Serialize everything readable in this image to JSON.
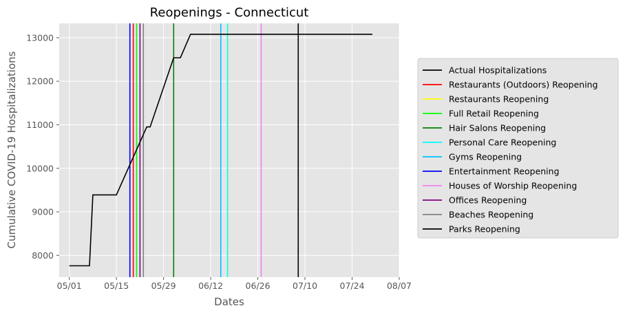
{
  "chart_data": {
    "type": "line",
    "title": "Reopenings - Connecticut",
    "xlabel": "Dates",
    "ylabel": "Cumulative COVID-19 Hospitalizations",
    "x_axis": {
      "type": "date",
      "range": [
        "2020-04-28",
        "2020-08-07"
      ],
      "ticks": [
        {
          "date": "2020-05-01",
          "label": "05/01"
        },
        {
          "date": "2020-05-15",
          "label": "05/15"
        },
        {
          "date": "2020-05-29",
          "label": "05/29"
        },
        {
          "date": "2020-06-12",
          "label": "06/12"
        },
        {
          "date": "2020-06-26",
          "label": "06/26"
        },
        {
          "date": "2020-07-10",
          "label": "07/10"
        },
        {
          "date": "2020-07-24",
          "label": "07/24"
        },
        {
          "date": "2020-08-07",
          "label": "08/07"
        }
      ]
    },
    "y_axis": {
      "range": [
        7500,
        13330
      ],
      "ticks": [
        {
          "value": 8000,
          "label": "8000"
        },
        {
          "value": 9000,
          "label": "9000"
        },
        {
          "value": 10000,
          "label": "10000"
        },
        {
          "value": 11000,
          "label": "11000"
        },
        {
          "value": 12000,
          "label": "12000"
        },
        {
          "value": 13000,
          "label": "13000"
        }
      ]
    },
    "grid": true,
    "legend_position": "right",
    "series": [
      {
        "name": "Actual Hospitalizations",
        "color": "#000000",
        "points": [
          {
            "x": "2020-05-01",
            "y": 7760
          },
          {
            "x": "2020-05-07",
            "y": 7760
          },
          {
            "x": "2020-05-08",
            "y": 9390
          },
          {
            "x": "2020-05-15",
            "y": 9390
          },
          {
            "x": "2020-05-24",
            "y": 10950
          },
          {
            "x": "2020-05-25",
            "y": 10950
          },
          {
            "x": "2020-06-01",
            "y": 12540
          },
          {
            "x": "2020-06-03",
            "y": 12540
          },
          {
            "x": "2020-06-06",
            "y": 13080
          },
          {
            "x": "2020-07-30",
            "y": 13080
          }
        ]
      }
    ],
    "reopenings": [
      {
        "name": "Restaurants (Outdoors) Reopening",
        "date": "2020-05-20",
        "color": "#ff0000"
      },
      {
        "name": "Restaurants Reopening",
        "date": "2020-06-17",
        "color": "#ffff00"
      },
      {
        "name": "Full Retail Reopening",
        "date": "2020-05-21",
        "color": "#00ff00"
      },
      {
        "name": "Hair Salons Reopening",
        "date": "2020-06-01",
        "color": "#008000"
      },
      {
        "name": "Personal Care Reopening",
        "date": "2020-06-17",
        "color": "#00ffff"
      },
      {
        "name": "Gyms Reopening",
        "date": "2020-06-15",
        "color": "#00bfff"
      },
      {
        "name": "Entertainment Reopening",
        "date": "2020-05-19",
        "color": "#0000ff"
      },
      {
        "name": "Houses of Worship Reopening",
        "date": "2020-06-27",
        "color": "#ee82ee"
      },
      {
        "name": "Offices Reopening",
        "date": "2020-05-22",
        "color": "#800080"
      },
      {
        "name": "Beaches Reopening",
        "date": "2020-05-23",
        "color": "#808080"
      },
      {
        "name": "Parks Reopening",
        "date": "2020-07-08",
        "color": "#000000"
      }
    ]
  }
}
